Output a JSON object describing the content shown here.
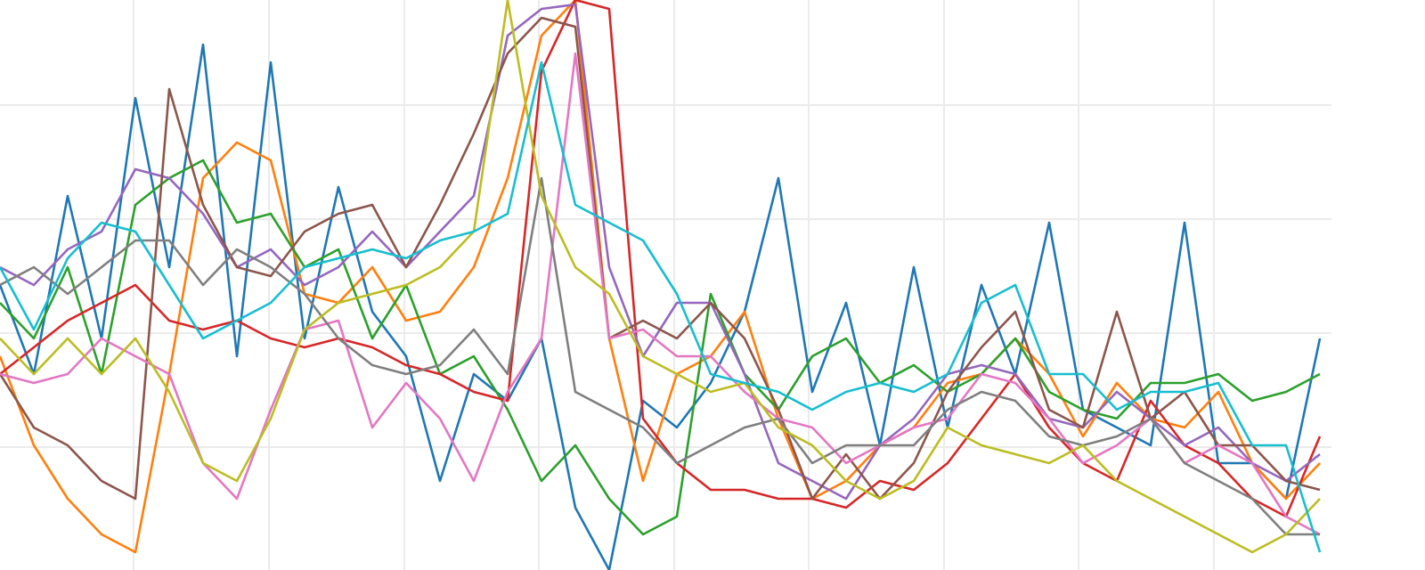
{
  "chart_data": {
    "type": "line",
    "grid": true,
    "xlim": [
      0,
      1600
    ],
    "ylim": [
      -10,
      630
    ],
    "xticks": [
      150,
      302,
      454,
      605,
      757,
      908,
      1060,
      1211,
      1363
    ],
    "yticks": [
      128,
      256,
      384,
      512
    ],
    "x": [
      0,
      38,
      76,
      114,
      152,
      190,
      228,
      266,
      304,
      342,
      380,
      418,
      456,
      494,
      532,
      570,
      608,
      646,
      684,
      722,
      760,
      798,
      836,
      874,
      912,
      950,
      988,
      1026,
      1064,
      1102,
      1140,
      1178,
      1216,
      1254,
      1292,
      1330,
      1368,
      1406,
      1444,
      1482
    ],
    "series": [
      {
        "color": "#1f77b4",
        "values": [
          310,
          210,
          410,
          250,
          520,
          330,
          580,
          230,
          560,
          250,
          420,
          280,
          230,
          90,
          210,
          180,
          250,
          60,
          -10,
          180,
          150,
          200,
          280,
          430,
          190,
          290,
          130,
          330,
          150,
          310,
          210,
          380,
          170,
          150,
          130,
          380,
          110,
          110,
          70,
          250
        ]
      },
      {
        "color": "#ff7f0e",
        "values": [
          230,
          130,
          70,
          30,
          10,
          210,
          430,
          470,
          450,
          300,
          290,
          330,
          270,
          280,
          330,
          430,
          590,
          630,
          250,
          90,
          210,
          230,
          280,
          160,
          70,
          90,
          130,
          150,
          200,
          210,
          250,
          210,
          140,
          200,
          160,
          150,
          190,
          110,
          70,
          110
        ]
      },
      {
        "color": "#2ca02c",
        "values": [
          290,
          250,
          330,
          210,
          400,
          430,
          450,
          380,
          390,
          330,
          350,
          250,
          310,
          210,
          230,
          170,
          90,
          130,
          70,
          30,
          50,
          300,
          210,
          170,
          230,
          250,
          200,
          220,
          190,
          210,
          250,
          190,
          170,
          160,
          200,
          200,
          210,
          180,
          190,
          210
        ]
      },
      {
        "color": "#d62728",
        "values": [
          210,
          240,
          270,
          290,
          310,
          270,
          260,
          270,
          250,
          240,
          250,
          240,
          220,
          210,
          190,
          180,
          550,
          630,
          620,
          160,
          110,
          80,
          80,
          70,
          70,
          60,
          90,
          80,
          110,
          160,
          210,
          150,
          110,
          90,
          180,
          130,
          110,
          70,
          50,
          140
        ]
      },
      {
        "color": "#9467bd",
        "values": [
          330,
          310,
          350,
          370,
          440,
          430,
          390,
          330,
          350,
          310,
          330,
          370,
          330,
          370,
          410,
          590,
          620,
          625,
          330,
          230,
          290,
          290,
          210,
          110,
          90,
          70,
          130,
          160,
          210,
          220,
          210,
          160,
          150,
          190,
          160,
          130,
          150,
          110,
          90,
          120
        ]
      },
      {
        "color": "#8c564b",
        "values": [
          210,
          150,
          130,
          90,
          70,
          530,
          400,
          330,
          320,
          370,
          390,
          400,
          330,
          400,
          480,
          570,
          610,
          600,
          250,
          270,
          250,
          290,
          250,
          170,
          70,
          120,
          70,
          110,
          190,
          240,
          280,
          170,
          150,
          280,
          160,
          190,
          130,
          130,
          90,
          80
        ]
      },
      {
        "color": "#e377c2",
        "values": [
          210,
          200,
          210,
          250,
          230,
          210,
          110,
          70,
          170,
          260,
          270,
          150,
          200,
          160,
          90,
          190,
          250,
          570,
          250,
          260,
          230,
          230,
          190,
          160,
          150,
          110,
          130,
          150,
          160,
          210,
          200,
          160,
          110,
          130,
          160,
          110,
          130,
          110,
          50,
          30
        ]
      },
      {
        "color": "#7f7f7f",
        "values": [
          310,
          330,
          300,
          330,
          360,
          360,
          310,
          350,
          330,
          300,
          250,
          220,
          210,
          220,
          260,
          210,
          430,
          190,
          170,
          150,
          110,
          130,
          150,
          160,
          110,
          130,
          130,
          130,
          170,
          190,
          180,
          140,
          130,
          140,
          160,
          110,
          90,
          70,
          30,
          30
        ]
      },
      {
        "color": "#bcbd22",
        "values": [
          250,
          210,
          250,
          210,
          250,
          190,
          110,
          90,
          160,
          260,
          290,
          300,
          310,
          330,
          370,
          630,
          410,
          330,
          300,
          230,
          210,
          190,
          200,
          150,
          130,
          90,
          70,
          90,
          150,
          130,
          120,
          110,
          130,
          90,
          70,
          50,
          30,
          10,
          30,
          70
        ]
      },
      {
        "color": "#17becf",
        "values": [
          330,
          260,
          340,
          380,
          370,
          310,
          250,
          270,
          290,
          330,
          340,
          350,
          340,
          360,
          370,
          390,
          560,
          400,
          380,
          360,
          300,
          210,
          200,
          190,
          170,
          190,
          200,
          190,
          210,
          290,
          310,
          210,
          210,
          170,
          190,
          190,
          200,
          130,
          130,
          10
        ]
      }
    ]
  }
}
